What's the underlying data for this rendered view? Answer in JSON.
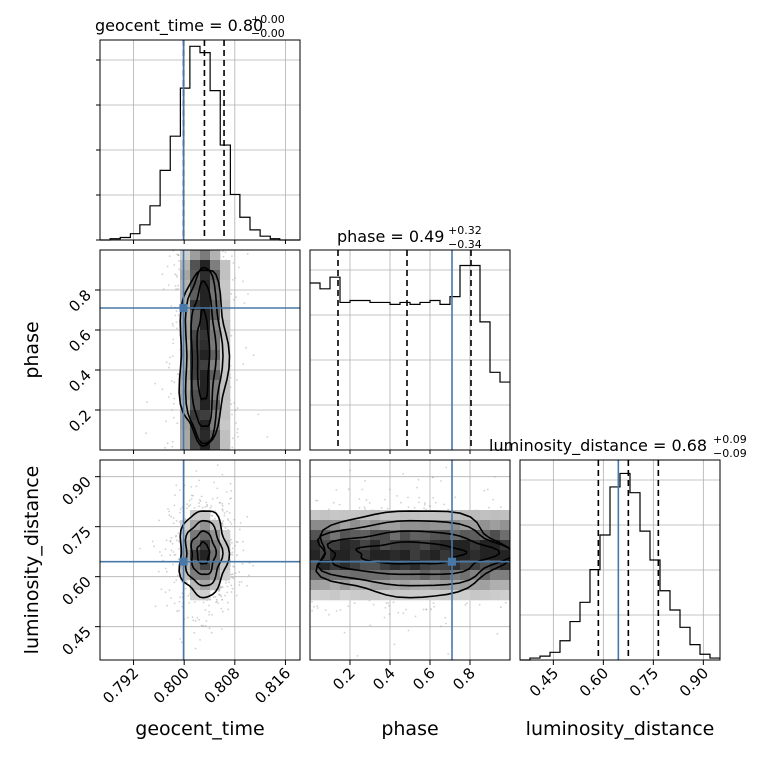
{
  "chart_data": {
    "type": "corner",
    "parameters": [
      "geocent_time",
      "phase",
      "luminosity_distance"
    ],
    "titles": [
      {
        "name": "geocent_time",
        "value": "0.80",
        "plus": "+0.00",
        "minus": "−0.00"
      },
      {
        "name": "phase",
        "value": "0.49",
        "plus": "+0.32",
        "minus": "−0.34"
      },
      {
        "name": "luminosity_distance",
        "value": "0.68",
        "plus": "+0.09",
        "minus": "−0.09"
      }
    ],
    "truths": [
      0.7999,
      0.71,
      0.645
    ],
    "quantiles": [
      [
        0.7999,
        0.8032,
        0.8063
      ],
      [
        0.14,
        0.485,
        0.805
      ],
      [
        0.585,
        0.675,
        0.765
      ]
    ],
    "ranges": [
      [
        0.7867,
        0.8183
      ],
      [
        0.0,
        1.0
      ],
      [
        0.35,
        0.95
      ]
    ],
    "ticks": [
      {
        "values": [
          0.792,
          0.8,
          0.808,
          0.816
        ],
        "labels": [
          "0.792",
          "0.800",
          "0.808",
          "0.816"
        ]
      },
      {
        "values": [
          0.2,
          0.4,
          0.6,
          0.8
        ],
        "labels": [
          "0.2",
          "0.4",
          "0.6",
          "0.8"
        ]
      },
      {
        "values": [
          0.45,
          0.6,
          0.75,
          0.9
        ],
        "labels": [
          "0.45",
          "0.60",
          "0.75",
          "0.90"
        ]
      }
    ],
    "histograms": [
      {
        "edges": [
          0.7867,
          0.7883,
          0.7899,
          0.7915,
          0.793,
          0.7946,
          0.7962,
          0.7978,
          0.7994,
          0.8009,
          0.8025,
          0.8041,
          0.8057,
          0.8073,
          0.8088,
          0.8104,
          0.812,
          0.8136,
          0.8151,
          0.8167,
          0.8183
        ],
        "counts": [
          0,
          1,
          2,
          5,
          12,
          27,
          55,
          82,
          120,
          153,
          148,
          118,
          75,
          36,
          18,
          8,
          3,
          1,
          0,
          0
        ],
        "ymax": 158
      },
      {
        "edges": [
          0.0,
          0.05,
          0.1,
          0.15,
          0.2,
          0.25,
          0.3,
          0.35,
          0.4,
          0.45,
          0.5,
          0.55,
          0.6,
          0.65,
          0.7,
          0.75,
          0.8,
          0.85,
          0.9,
          0.95,
          1.0
        ],
        "counts": [
          86,
          83,
          89,
          76,
          77,
          77,
          76,
          76,
          75,
          76,
          75,
          76,
          77,
          75,
          79,
          95,
          95,
          66,
          40,
          35
        ],
        "ymax": 103
      },
      {
        "edges": [
          0.35,
          0.38,
          0.41,
          0.44,
          0.47,
          0.5,
          0.53,
          0.56,
          0.59,
          0.62,
          0.65,
          0.68,
          0.71,
          0.74,
          0.77,
          0.8,
          0.83,
          0.86,
          0.89,
          0.92,
          0.95
        ],
        "counts": [
          0,
          1,
          2,
          4,
          10,
          20,
          30,
          47,
          65,
          90,
          97,
          87,
          67,
          52,
          36,
          26,
          17,
          8,
          3,
          1
        ],
        "ymax": 104
      }
    ],
    "colors": {
      "truth": "#4878a8",
      "hist": "#000000",
      "quantile": "#000000",
      "grid": "#b0b0b0"
    }
  }
}
